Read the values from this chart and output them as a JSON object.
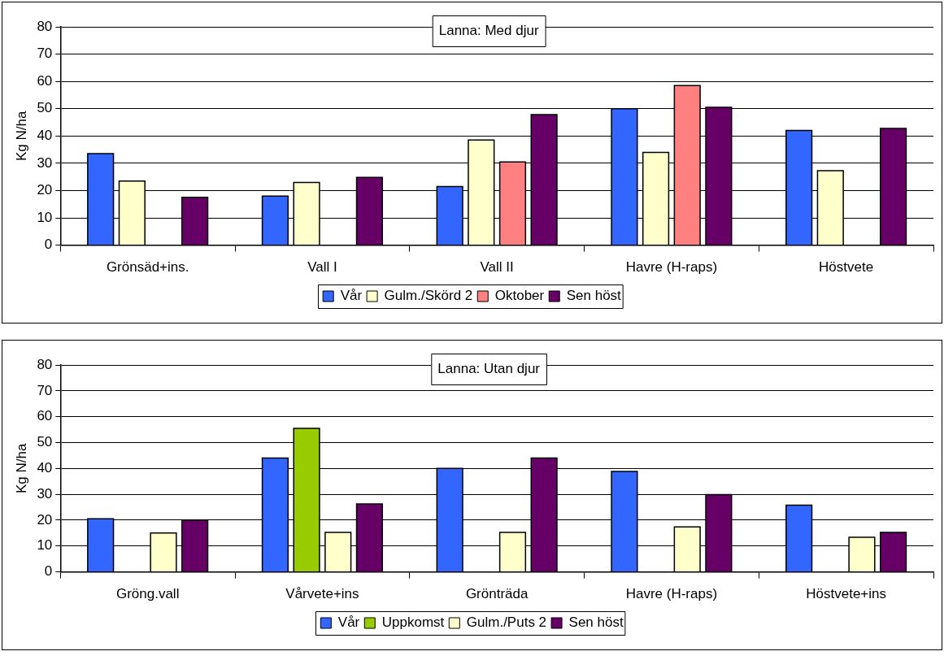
{
  "chart_data": [
    {
      "type": "bar",
      "title": "Lanna: Med djur",
      "ylabel": "Kg N/ha",
      "categories": [
        "Grönsäd+ins.",
        "Vall I",
        "Vall II",
        "Havre (H-raps)",
        "Höstvete"
      ],
      "ylim": [
        0,
        80
      ],
      "yticks": [
        0,
        10,
        20,
        30,
        40,
        50,
        60,
        70,
        80
      ],
      "grid": "y",
      "legend": "bottom",
      "series": [
        {
          "name": "Vår",
          "color": "#3366ff",
          "values": [
            33.5,
            18,
            21.5,
            50,
            42
          ]
        },
        {
          "name": "Gulm./Skörd 2",
          "color": "#ffffcc",
          "values": [
            23.5,
            23,
            38.5,
            34,
            27.3
          ]
        },
        {
          "name": "Oktober",
          "color": "#ff8080",
          "values": [
            null,
            null,
            30.5,
            58.5,
            null
          ]
        },
        {
          "name": "Sen höst",
          "color": "#660066",
          "values": [
            17.5,
            24.8,
            47.8,
            50.5,
            42.8
          ]
        }
      ]
    },
    {
      "type": "bar",
      "title": "Lanna: Utan djur",
      "ylabel": "Kg N/ha",
      "categories": [
        "Gröng.vall",
        "Vårvete+ins",
        "Grönträda",
        "Havre (H-raps)",
        "Höstvete+ins"
      ],
      "ylim": [
        0,
        80
      ],
      "yticks": [
        0,
        10,
        20,
        30,
        40,
        50,
        60,
        70,
        80
      ],
      "grid": "y",
      "legend": "bottom",
      "series": [
        {
          "name": "Vår",
          "color": "#3366ff",
          "values": [
            20.5,
            44,
            40,
            38.8,
            25.8
          ]
        },
        {
          "name": "Uppkomst",
          "color": "#99cc00",
          "values": [
            null,
            55.5,
            null,
            null,
            null
          ]
        },
        {
          "name": "Gulm./Puts 2",
          "color": "#ffffcc",
          "values": [
            15,
            15.3,
            15.3,
            17.4,
            13.4
          ]
        },
        {
          "name": "Sen höst",
          "color": "#660066",
          "values": [
            20,
            26.3,
            44,
            29.9,
            15.3
          ]
        }
      ]
    }
  ]
}
